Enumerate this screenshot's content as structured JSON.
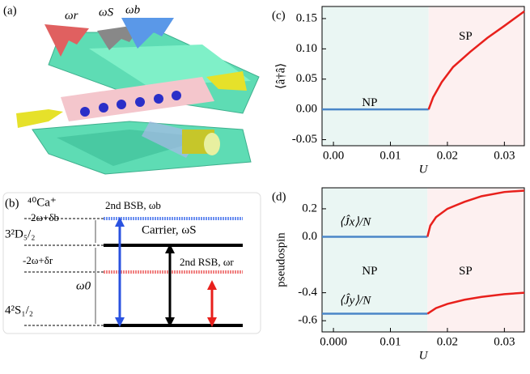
{
  "panel_a": {
    "label": "(a)",
    "omega_r": "ωr",
    "omega_s": "ωS",
    "omega_b": "ωb"
  },
  "panel_b": {
    "label": "(b)",
    "ion": "⁴⁰Ca⁺",
    "level_d": "3²D₅/₂",
    "level_s": "4²S₁/₂",
    "delta_b": "2ω+δb",
    "delta_r": "-2ω+δr",
    "omega0": "ω0",
    "carrier": "Carrier, ωS",
    "bsb": "2nd BSB, ωb",
    "rsb": "2nd RSB, ωr"
  },
  "chart_data": [
    {
      "type": "line",
      "panel": "(c)",
      "y_label": "⟨â†â⟩",
      "x_label": "U",
      "annotations": [
        "NP",
        "SP"
      ],
      "region_colors": [
        "#eaf6f3",
        "#fdf0f0"
      ],
      "xlim": [
        -0.002,
        0.0335
      ],
      "ylim": [
        -0.06,
        0.17
      ],
      "xticks": [
        {
          "value": 0,
          "label": "0.00"
        },
        0.01,
        0.02,
        0.03
      ],
      "yticks": [
        -0.05,
        {
          "value": 0,
          "label": "0.00"
        },
        0.05,
        {
          "value": 0.1,
          "label": "0.10"
        },
        0.15
      ],
      "series": [
        {
          "color": "#4a86c8",
          "x": [
            -0.002,
            0.0167
          ],
          "values": [
            0,
            0
          ]
        },
        {
          "color": "#e8201c",
          "x": [
            0.0167,
            0.0175,
            0.019,
            0.021,
            0.024,
            0.027,
            0.03,
            0.0335
          ],
          "values": [
            0,
            0.02,
            0.045,
            0.07,
            0.095,
            0.118,
            0.138,
            0.162
          ]
        }
      ]
    },
    {
      "type": "line",
      "panel": "(d)",
      "y_label": "pseudospin",
      "x_label": "U",
      "annotations": [
        "NP",
        "SP",
        "⟨Ĵx⟩/N",
        "⟨Ĵy⟩/N"
      ],
      "region_colors": [
        "#eaf6f3",
        "#fdf0f0"
      ],
      "xlim": [
        -0.002,
        0.0335
      ],
      "ylim": [
        -0.68,
        0.35
      ],
      "xticks": [
        {
          "value": 0,
          "label": "0.000"
        },
        0.01,
        0.02,
        0.03
      ],
      "yticks": [
        -0.6,
        -0.4,
        {
          "value": 0,
          "label": "0.0"
        },
        0.2
      ],
      "series": [
        {
          "color": "#4a86c8",
          "x": [
            -0.002,
            0.0165
          ],
          "values": [
            0,
            0
          ]
        },
        {
          "color": "#e8201c",
          "x": [
            0.0165,
            0.017,
            0.018,
            0.02,
            0.023,
            0.026,
            0.03,
            0.0335
          ],
          "values": [
            0,
            0.08,
            0.14,
            0.2,
            0.25,
            0.29,
            0.32,
            0.33
          ]
        },
        {
          "color": "#4a86c8",
          "x": [
            -0.002,
            0.0165
          ],
          "values": [
            -0.55,
            -0.55
          ]
        },
        {
          "color": "#e8201c",
          "x": [
            0.0165,
            0.018,
            0.02,
            0.023,
            0.026,
            0.03,
            0.0335
          ],
          "values": [
            -0.55,
            -0.51,
            -0.48,
            -0.45,
            -0.43,
            -0.41,
            -0.4
          ]
        }
      ]
    }
  ]
}
